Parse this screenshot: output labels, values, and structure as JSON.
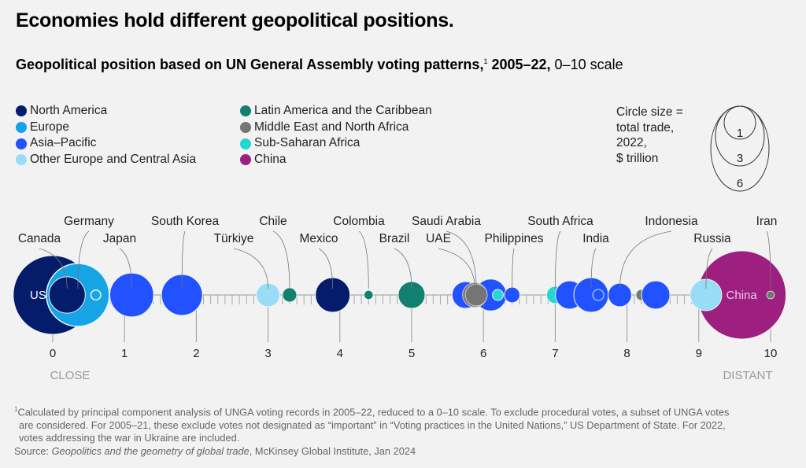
{
  "title": "Economies hold different geopolitical positions.",
  "subtitle": {
    "bold": "Geopolitical position based on UN General Assembly voting patterns,",
    "sup": "1",
    "bold2": " 2005–22,",
    "rest": " 0–10 scale"
  },
  "colors": {
    "North America": "#051c6b",
    "Europe": "#16a4e5",
    "Asia–Pacific": "#2251ff",
    "Other Europe and Central Asia": "#99dcf6",
    "Latin America and the Caribbean": "#12806f",
    "Middle East and North Africa": "#757575",
    "Sub-Saharan Africa": "#22d9d0",
    "China": "#9d1f7f"
  },
  "legend": {
    "col1": [
      "North America",
      "Europe",
      "Asia–Pacific",
      "Other Europe and Central Asia"
    ],
    "col2": [
      "Latin America and the Caribbean",
      "Middle East and North Africa",
      "Sub-Saharan Africa",
      "China"
    ]
  },
  "size_legend": {
    "lines": [
      "Circle size =",
      "total trade,",
      "2022,",
      "$ trillion"
    ],
    "values": [
      "1",
      "3",
      "6"
    ]
  },
  "chart_data": {
    "type": "scatter",
    "encoding": "bubble position = geopolitical position (0–10); bubble area = total trade 2022, $ trillion",
    "xlim": [
      0,
      10
    ],
    "ticks": [
      "0",
      "1",
      "2",
      "3",
      "4",
      "5",
      "6",
      "7",
      "8",
      "9",
      "10"
    ],
    "end_labels": {
      "left": "CLOSE",
      "right": "DISTANT"
    },
    "points": [
      {
        "name": "US",
        "region": "North America",
        "x": 0.0,
        "trade": 5.2,
        "inside": true
      },
      {
        "name": "",
        "region": "Europe",
        "x": 0.45,
        "trade": 1.6
      },
      {
        "name": "",
        "region": "Europe",
        "x": 0.55,
        "trade": 1.2
      },
      {
        "name": "",
        "region": "Europe",
        "x": 0.5,
        "trade": 0.9
      },
      {
        "name": "Germany",
        "region": "Europe",
        "x": 0.35,
        "trade": 3.3
      },
      {
        "name": "Canada",
        "region": "North America",
        "x": 0.2,
        "trade": 1.1
      },
      {
        "name": "",
        "region": "Europe",
        "x": 0.6,
        "trade": 0.08
      },
      {
        "name": "Japan",
        "region": "Asia–Pacific",
        "x": 1.1,
        "trade": 1.6
      },
      {
        "name": "South Korea",
        "region": "Asia–Pacific",
        "x": 1.8,
        "trade": 1.4
      },
      {
        "name": "Türkiye",
        "region": "Other Europe and Central Asia",
        "x": 3.0,
        "trade": 0.46
      },
      {
        "name": "Chile",
        "region": "Latin America and the Caribbean",
        "x": 3.3,
        "trade": 0.17
      },
      {
        "name": "Mexico",
        "region": "North America",
        "x": 3.9,
        "trade": 1.0
      },
      {
        "name": "Colombia",
        "region": "Latin America and the Caribbean",
        "x": 4.4,
        "trade": 0.07
      },
      {
        "name": "Brazil",
        "region": "Latin America and the Caribbean",
        "x": 5.0,
        "trade": 0.6
      },
      {
        "name": "",
        "region": "Asia–Pacific",
        "x": 5.75,
        "trade": 0.6
      },
      {
        "name": "",
        "region": "Asia–Pacific",
        "x": 6.1,
        "trade": 0.85
      },
      {
        "name": "UAE",
        "region": "Middle East and North Africa",
        "x": 5.88,
        "trade": 0.5
      },
      {
        "name": "Saudi Arabia",
        "region": "Middle East and North Africa",
        "x": 5.9,
        "trade": 0.4
      },
      {
        "name": "",
        "region": "Sub-Saharan Africa",
        "x": 6.2,
        "trade": 0.1
      },
      {
        "name": "Philippines",
        "region": "Asia–Pacific",
        "x": 6.4,
        "trade": 0.2
      },
      {
        "name": "South Africa",
        "region": "Sub-Saharan Africa",
        "x": 7.0,
        "trade": 0.25
      },
      {
        "name": "",
        "region": "Asia–Pacific",
        "x": 7.2,
        "trade": 0.67
      },
      {
        "name": "India",
        "region": "Asia–Pacific",
        "x": 7.5,
        "trade": 1.0
      },
      {
        "name": "",
        "region": "Other Europe and Central Asia",
        "x": 7.6,
        "trade": 0.1,
        "outline": true
      },
      {
        "name": "Indonesia",
        "region": "Asia–Pacific",
        "x": 7.9,
        "trade": 0.46
      },
      {
        "name": "",
        "region": "Middle East and North Africa",
        "x": 8.2,
        "trade": 0.1
      },
      {
        "name": "",
        "region": "Asia–Pacific",
        "x": 8.4,
        "trade": 0.67
      },
      {
        "name": "China",
        "region": "China",
        "x": 9.6,
        "trade": 6.5,
        "inside": true
      },
      {
        "name": "Russia",
        "region": "Other Europe and Central Asia",
        "x": 9.1,
        "trade": 0.83
      },
      {
        "name": "Iran",
        "region": "Middle East and North Africa",
        "x": 10.0,
        "trade": 0.05
      }
    ]
  },
  "footnote": {
    "sup": "1",
    "text1": "Calculated by principal component analysis of UNGA voting records in 2005–22, reduced to a 0–10 scale. To exclude procedural votes, a subset of UNGA votes",
    "text2": "are considered. For 2005–21, these exclude votes not designated as “important” in “Voting practices in the United Nations,” US Department of State. For 2022,",
    "text3": "votes addressing the war in Ukraine are included.",
    "source_prefix": "Source: ",
    "source_title": "Geopolitics and the geometry of global trade",
    "source_rest": ", McKinsey Global Institute, Jan 2024"
  }
}
